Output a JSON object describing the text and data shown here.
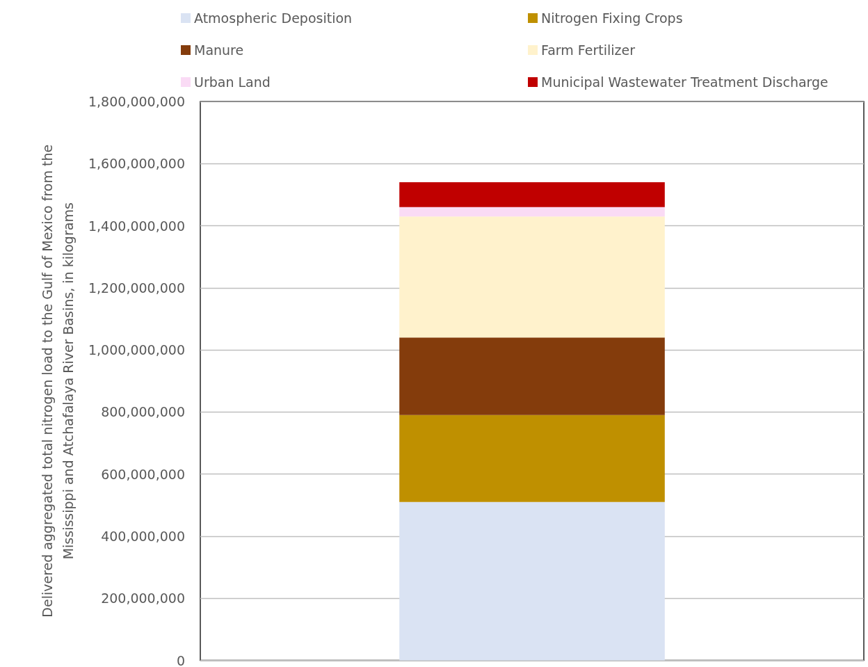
{
  "chart_data": {
    "type": "bar",
    "stacked": true,
    "ylabel": "Delivered aggregated total nitrogen load to the Gulf of Mexico from the\nMississippi and Atchafalaya River Basins, in kilograms",
    "categories": [
      null
    ],
    "series": [
      {
        "name": "Atmospheric Deposition",
        "color": "#dae3f3",
        "values": [
          510000000
        ]
      },
      {
        "name": "Nitrogen Fixing Crops",
        "color": "#bf9000",
        "values": [
          280000000
        ]
      },
      {
        "name": "Manure",
        "color": "#843c0c",
        "values": [
          250000000
        ]
      },
      {
        "name": "Farm Fertilizer",
        "color": "#fff2cc",
        "values": [
          390000000
        ]
      },
      {
        "name": "Urban Land",
        "color": "#fadbf5",
        "values": [
          30000000
        ]
      },
      {
        "name": "Municipal Wastewater Treatment Discharge",
        "color": "#c00000",
        "values": [
          80000000
        ]
      }
    ],
    "ylim": [
      0,
      1800000000
    ],
    "yticks": [
      0,
      {
        "value": 200000000,
        "label": "200,000,000"
      },
      {
        "value": 400000000,
        "label": "400,000,000"
      },
      {
        "value": 600000000,
        "label": "600,000,000"
      },
      {
        "value": 800000000,
        "label": "800,000,000"
      },
      {
        "value": 1000000000,
        "label": "1,000,000,000"
      },
      {
        "value": 1200000000,
        "label": "1,200,000,000"
      },
      {
        "value": 1400000000,
        "label": "1,400,000,000"
      },
      {
        "value": 1600000000,
        "label": "1,600,000,000"
      },
      {
        "value": 1800000000,
        "label": "1,800,000,000"
      }
    ],
    "grid": "y",
    "legend": "top"
  }
}
